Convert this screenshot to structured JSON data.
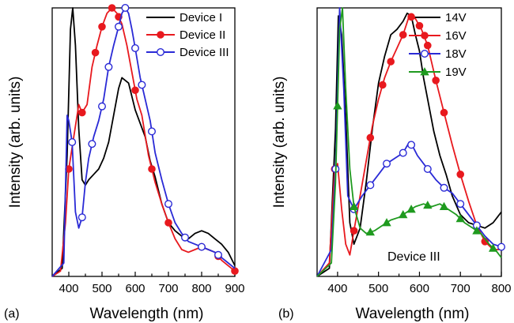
{
  "chart_data": [
    {
      "type": "line",
      "panel_label": "(a)",
      "xlabel": "Wavelength (nm)",
      "ylabel": "Intensity (arb. units)",
      "xlim": [
        350,
        900
      ],
      "ylim": [
        0,
        1.0
      ],
      "xticks": [
        400,
        500,
        600,
        700,
        800,
        900
      ],
      "legend_position": "top-right",
      "series": [
        {
          "name": "Device I",
          "color": "#000000",
          "marker": "none",
          "x": [
            350,
            380,
            395,
            405,
            412,
            420,
            430,
            440,
            450,
            460,
            475,
            490,
            505,
            520,
            535,
            550,
            560,
            570,
            580,
            590,
            600,
            615,
            630,
            645,
            660,
            680,
            700,
            720,
            740,
            760,
            780,
            800,
            820,
            840,
            860,
            880,
            900
          ],
          "y": [
            0.0,
            0.03,
            0.45,
            0.92,
            1.0,
            0.86,
            0.55,
            0.36,
            0.34,
            0.36,
            0.38,
            0.4,
            0.44,
            0.5,
            0.6,
            0.7,
            0.74,
            0.73,
            0.72,
            0.67,
            0.62,
            0.57,
            0.52,
            0.43,
            0.37,
            0.27,
            0.2,
            0.17,
            0.15,
            0.14,
            0.16,
            0.17,
            0.16,
            0.14,
            0.12,
            0.09,
            0.04
          ]
        },
        {
          "name": "Device II",
          "color": "#e8191e",
          "marker": "filled-circle",
          "x": [
            350,
            375,
            390,
            400,
            410,
            420,
            430,
            440,
            455,
            470,
            485,
            500,
            515,
            530,
            545,
            560,
            575,
            590,
            605,
            620,
            640,
            660,
            680,
            700,
            720,
            740,
            760,
            780,
            800,
            820,
            840,
            860,
            880,
            900
          ],
          "y": [
            0.0,
            0.02,
            0.2,
            0.4,
            0.48,
            0.56,
            0.64,
            0.61,
            0.64,
            0.78,
            0.86,
            0.93,
            0.98,
            1.0,
            0.98,
            0.94,
            0.86,
            0.76,
            0.66,
            0.6,
            0.45,
            0.35,
            0.27,
            0.2,
            0.14,
            0.1,
            0.09,
            0.1,
            0.11,
            0.1,
            0.09,
            0.06,
            0.04,
            0.02
          ],
          "marker_x": [
            400,
            440,
            480,
            500,
            530,
            550,
            600,
            650,
            700,
            800,
            850,
            900
          ]
        },
        {
          "name": "Device III",
          "color": "#2a2ad6",
          "marker": "open-circle",
          "x": [
            350,
            385,
            395,
            400,
            410,
            420,
            430,
            440,
            450,
            460,
            475,
            490,
            505,
            520,
            535,
            550,
            560,
            570,
            580,
            590,
            600,
            615,
            630,
            645,
            660,
            680,
            700,
            720,
            740,
            760,
            780,
            800,
            820,
            840,
            860,
            880,
            900
          ],
          "y": [
            0.0,
            0.05,
            0.6,
            0.58,
            0.5,
            0.24,
            0.18,
            0.22,
            0.35,
            0.44,
            0.52,
            0.58,
            0.66,
            0.78,
            0.86,
            0.93,
            0.98,
            1.0,
            0.98,
            0.92,
            0.85,
            0.74,
            0.66,
            0.58,
            0.46,
            0.36,
            0.27,
            0.2,
            0.16,
            0.13,
            0.12,
            0.11,
            0.1,
            0.09,
            0.07,
            0.05,
            0.03
          ],
          "marker_x": [
            410,
            440,
            470,
            500,
            520,
            550,
            570,
            600,
            620,
            650,
            700,
            750,
            800,
            850
          ]
        }
      ]
    },
    {
      "type": "line",
      "panel_label": "(b)",
      "xlabel": "Wavelength (nm)",
      "ylabel": "Intensity (arb. units)",
      "annotation": "Device III",
      "xlim": [
        350,
        800
      ],
      "ylim": [
        0,
        1.0
      ],
      "xticks": [
        400,
        500,
        600,
        700,
        800
      ],
      "legend_position": "top-right",
      "series": [
        {
          "name": "14V",
          "color": "#000000",
          "marker": "none",
          "x": [
            350,
            380,
            395,
            402,
            410,
            420,
            430,
            440,
            455,
            470,
            485,
            500,
            515,
            530,
            545,
            560,
            570,
            580,
            590,
            600,
            610,
            620,
            635,
            650,
            665,
            680,
            700,
            720,
            740,
            760,
            780,
            800
          ],
          "y": [
            0.0,
            0.03,
            0.55,
            0.97,
            0.9,
            0.6,
            0.2,
            0.12,
            0.18,
            0.35,
            0.55,
            0.72,
            0.82,
            0.9,
            0.92,
            0.95,
            0.98,
            0.97,
            0.9,
            0.84,
            0.74,
            0.66,
            0.54,
            0.45,
            0.38,
            0.3,
            0.23,
            0.2,
            0.19,
            0.18,
            0.2,
            0.24
          ]
        },
        {
          "name": "16V",
          "color": "#e8191e",
          "marker": "filled-circle",
          "x": [
            350,
            380,
            393,
            400,
            410,
            420,
            430,
            440,
            455,
            470,
            485,
            500,
            515,
            530,
            545,
            560,
            575,
            590,
            605,
            620,
            640,
            660,
            680,
            700,
            720,
            740,
            760,
            780,
            800
          ],
          "y": [
            0.0,
            0.05,
            0.4,
            0.42,
            0.25,
            0.12,
            0.08,
            0.17,
            0.3,
            0.43,
            0.56,
            0.66,
            0.74,
            0.8,
            0.85,
            0.9,
            0.97,
            0.96,
            0.92,
            0.86,
            0.73,
            0.61,
            0.49,
            0.38,
            0.28,
            0.19,
            0.13,
            0.1,
            0.1
          ],
          "marker_x": [
            393,
            440,
            480,
            510,
            530,
            560,
            580,
            600,
            620,
            640,
            660,
            700,
            760
          ]
        },
        {
          "name": "18V",
          "color": "#2a2ad6",
          "marker": "open-circle",
          "x": [
            350,
            385,
            395,
            405,
            415,
            425,
            440,
            460,
            480,
            500,
            520,
            540,
            560,
            575,
            585,
            595,
            610,
            625,
            640,
            660,
            680,
            700,
            720,
            740,
            760,
            780,
            800
          ],
          "y": [
            0.0,
            0.1,
            0.4,
            1.0,
            0.7,
            0.3,
            0.25,
            0.3,
            0.34,
            0.38,
            0.42,
            0.44,
            0.46,
            0.5,
            0.48,
            0.45,
            0.42,
            0.39,
            0.36,
            0.33,
            0.31,
            0.27,
            0.23,
            0.19,
            0.15,
            0.12,
            0.11
          ],
          "marker_x": [
            395,
            440,
            480,
            520,
            560,
            580,
            620,
            660,
            700,
            740,
            800
          ]
        },
        {
          "name": "19V",
          "color": "#1f9a1f",
          "marker": "filled-triangle",
          "x": [
            350,
            385,
            395,
            405,
            412,
            420,
            430,
            440,
            455,
            470,
            490,
            510,
            530,
            550,
            570,
            590,
            610,
            630,
            650,
            670,
            690,
            710,
            730,
            750,
            770,
            790,
            800
          ],
          "y": [
            0.0,
            0.05,
            0.35,
            0.92,
            1.0,
            0.7,
            0.4,
            0.26,
            0.18,
            0.16,
            0.17,
            0.19,
            0.21,
            0.22,
            0.24,
            0.26,
            0.27,
            0.26,
            0.27,
            0.25,
            0.23,
            0.2,
            0.18,
            0.16,
            0.12,
            0.09,
            0.07
          ],
          "marker_x": [
            400,
            440,
            480,
            520,
            560,
            580,
            620,
            660,
            700,
            740,
            780
          ]
        }
      ]
    }
  ]
}
